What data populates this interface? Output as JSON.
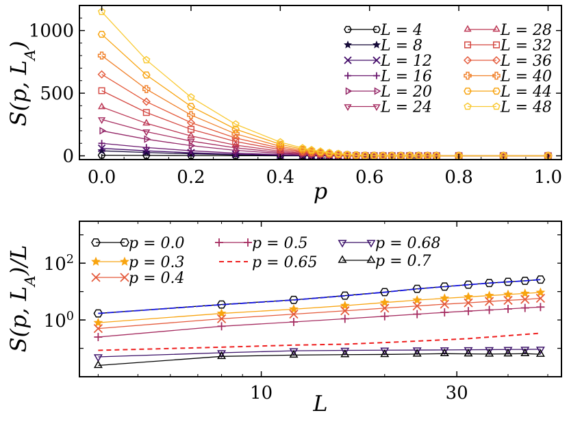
{
  "chart_data": [
    {
      "type": "line",
      "title": "",
      "xlabel": "p",
      "ylabel": "S(p, L_A)",
      "xlim": [
        -0.05,
        1.03
      ],
      "ylim": [
        -30,
        1200
      ],
      "x_ticks": [
        0.0,
        0.2,
        0.4,
        0.6,
        0.8,
        1.0
      ],
      "x_tick_labels": [
        "0.0",
        "0.2",
        "0.4",
        "0.6",
        "0.8",
        "1.0"
      ],
      "y_ticks": [
        0,
        500,
        1000
      ],
      "y_tick_labels": [
        "0",
        "500",
        "1000"
      ],
      "legend_position": "top-right",
      "x": [
        0.0,
        0.1,
        0.2,
        0.3,
        0.4,
        0.45,
        0.47,
        0.49,
        0.51,
        0.53,
        0.55,
        0.57,
        0.59,
        0.61,
        0.63,
        0.65,
        0.67,
        0.69,
        0.71,
        0.73,
        0.75,
        0.8,
        0.9,
        1.0
      ],
      "series": [
        {
          "name": "L = 4",
          "label": "L = 4",
          "L": 4,
          "color": "#000000",
          "marker": "hexagon",
          "s0": 5
        },
        {
          "name": "L = 8",
          "label": "L = 8",
          "L": 8,
          "color": "#160b39",
          "marker": "star",
          "s0": 40
        },
        {
          "name": "L = 12",
          "label": "L = 12",
          "L": 12,
          "color": "#420a68",
          "marker": "x",
          "s0": 60
        },
        {
          "name": "L = 16",
          "label": "L = 16",
          "L": 16,
          "color": "#6a176e",
          "marker": "plus",
          "s0": 100
        },
        {
          "name": "L = 20",
          "label": "L = 20",
          "L": 20,
          "color": "#932667",
          "marker": "triangle-right",
          "s0": 200
        },
        {
          "name": "L = 24",
          "label": "L = 24",
          "L": 24,
          "color": "#a52c60",
          "marker": "triangle-down",
          "s0": 290
        },
        {
          "name": "L = 28",
          "label": "L = 28",
          "L": 28,
          "color": "#bc3754",
          "marker": "triangle-up",
          "s0": 390
        },
        {
          "name": "L = 32",
          "label": "L = 32",
          "L": 32,
          "color": "#d44842",
          "marker": "square",
          "s0": 520
        },
        {
          "name": "L = 36",
          "label": "L = 36",
          "L": 36,
          "color": "#e4593a",
          "marker": "diamond",
          "s0": 650
        },
        {
          "name": "L = 40",
          "label": "L = 40",
          "L": 40,
          "color": "#f0802a",
          "marker": "plus-filled",
          "s0": 800
        },
        {
          "name": "L = 44",
          "label": "L = 44",
          "L": 44,
          "color": "#f8a410",
          "marker": "hexagon",
          "s0": 970
        },
        {
          "name": "L = 48",
          "label": "L = 48",
          "L": 48,
          "color": "#f9c932",
          "marker": "pentagon",
          "s0": 1150
        }
      ]
    },
    {
      "type": "line",
      "title": "",
      "xlabel": "L",
      "ylabel": "S(p, L_A)/L",
      "xscale": "log",
      "yscale": "log",
      "xlim": [
        3.6,
        54
      ],
      "ylim": [
        0.01,
        3000
      ],
      "x_ticks": [
        10,
        30
      ],
      "x_tick_labels": [
        "10",
        "30"
      ],
      "y_ticks": [
        1,
        100
      ],
      "y_tick_labels": [
        "10^0",
        "10^2"
      ],
      "legend_position": "top-left",
      "x": [
        4,
        8,
        12,
        16,
        20,
        24,
        28,
        32,
        36,
        40,
        44,
        48
      ],
      "series": [
        {
          "name": "p = 0.0",
          "label": "p = 0.0",
          "color": "#000000",
          "marker": "hexagon",
          "style": "solid",
          "values": [
            1.7,
            3.5,
            5.1,
            7.2,
            9.6,
            12.5,
            15.0,
            17.5,
            20.0,
            22.0,
            24.0,
            26.5
          ]
        },
        {
          "name": "p = 0.3",
          "label": "p = 0.3",
          "color": "#f8a410",
          "marker": "star",
          "style": "solid",
          "values": [
            0.8,
            1.7,
            2.4,
            3.2,
            4.1,
            5.0,
            5.8,
            6.5,
            7.2,
            7.9,
            8.6,
            9.3
          ]
        },
        {
          "name": "p = 0.4",
          "label": "p = 0.4",
          "color": "#e4593a",
          "marker": "x",
          "style": "solid",
          "values": [
            0.5,
            1.1,
            1.6,
            2.1,
            2.6,
            3.1,
            3.6,
            4.0,
            4.5,
            4.9,
            5.3,
            5.8
          ]
        },
        {
          "name": "p = 0.5",
          "label": "p = 0.5",
          "color": "#a52c60",
          "marker": "plus",
          "style": "solid",
          "values": [
            0.25,
            0.6,
            0.85,
            1.1,
            1.35,
            1.6,
            1.85,
            2.05,
            2.25,
            2.45,
            2.65,
            2.85
          ]
        },
        {
          "name": "p = 0.65",
          "label": "p = 0.65",
          "color": "#ee1c1c",
          "marker": "none",
          "style": "dashed",
          "values": [
            0.085,
            0.11,
            0.13,
            0.14,
            0.16,
            0.18,
            0.2,
            0.22,
            0.25,
            0.28,
            0.31,
            0.34
          ]
        },
        {
          "name": "p = 0.68",
          "label": "p = 0.68",
          "color": "#3a1068",
          "marker": "triangle-down",
          "style": "solid",
          "values": [
            0.05,
            0.07,
            0.082,
            0.085,
            0.086,
            0.087,
            0.088,
            0.089,
            0.09,
            0.091,
            0.092,
            0.093
          ]
        },
        {
          "name": "p = 0.7",
          "label": "p = 0.7",
          "color": "#000000",
          "marker": "triangle-up",
          "style": "solid",
          "values": [
            0.025,
            0.052,
            0.058,
            0.06,
            0.061,
            0.063,
            0.065,
            0.064,
            0.063,
            0.064,
            0.065,
            0.062
          ]
        },
        {
          "name": "fit",
          "label": "",
          "color": "#1515e0",
          "marker": "none",
          "style": "solid",
          "values": [
            1.7,
            3.45,
            5.05,
            7.1,
            9.5,
            12.4,
            14.9,
            17.4,
            19.9,
            21.9,
            23.9,
            26.4
          ]
        }
      ]
    }
  ]
}
